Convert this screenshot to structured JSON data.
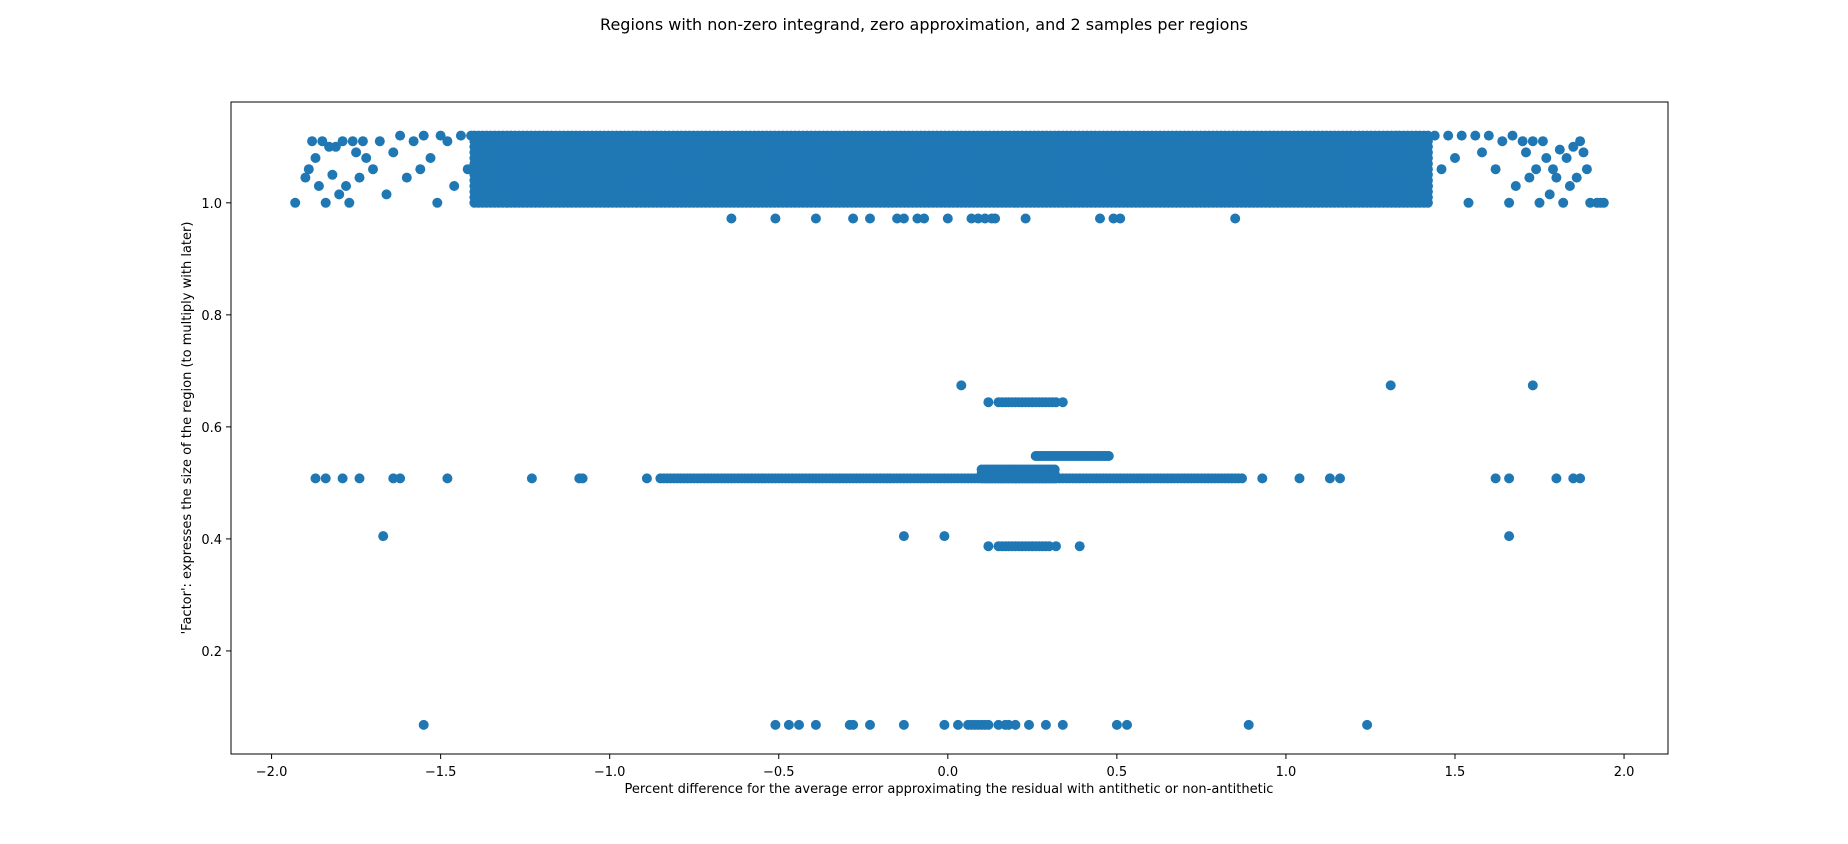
{
  "chart_data": {
    "type": "scatter",
    "title": "Regions with non-zero integrand, zero approximation, and 2 samples per regions",
    "xlabel": "Percent difference for the average error approximating the residual with antithetic or non-antithetic",
    "ylabel": "'Factor': expresses the size of the region (to multiply with later)",
    "xlim": [
      -2.12,
      2.13
    ],
    "ylim": [
      0.016,
      1.18
    ],
    "xticks": [
      -2.0,
      -1.5,
      -1.0,
      -0.5,
      0.0,
      0.5,
      1.0,
      1.5,
      2.0
    ],
    "xtick_labels": [
      "−2.0",
      "−1.5",
      "−1.0",
      "−0.5",
      "0.0",
      "0.5",
      "1.0",
      "1.5",
      "2.0"
    ],
    "yticks": [
      0.2,
      0.4,
      0.6,
      0.8,
      1.0
    ],
    "ytick_labels": [
      "0.2",
      "0.4",
      "0.6",
      "0.8",
      "1.0"
    ],
    "grid": false,
    "marker_color": "#1f77b4",
    "series": [
      {
        "points": [
          [
            -1.93,
            1.0
          ],
          [
            -1.9,
            1.045
          ],
          [
            -1.89,
            1.06
          ],
          [
            -1.88,
            1.11
          ],
          [
            -1.87,
            1.08
          ],
          [
            -1.86,
            1.03
          ],
          [
            -1.85,
            1.11
          ],
          [
            -1.84,
            1.0
          ],
          [
            -1.83,
            1.1
          ],
          [
            -1.82,
            1.05
          ],
          [
            -1.81,
            1.1
          ],
          [
            -1.8,
            1.015
          ],
          [
            -1.79,
            1.11
          ],
          [
            -1.78,
            1.03
          ],
          [
            -1.77,
            1.0
          ],
          [
            -1.76,
            1.11
          ],
          [
            -1.75,
            1.09
          ],
          [
            -1.74,
            1.045
          ],
          [
            -1.73,
            1.11
          ],
          [
            -1.72,
            1.08
          ],
          [
            -1.7,
            1.06
          ],
          [
            -1.68,
            1.11
          ],
          [
            -1.66,
            1.015
          ],
          [
            -1.64,
            1.09
          ],
          [
            -1.62,
            1.12
          ],
          [
            -1.6,
            1.045
          ],
          [
            -1.58,
            1.11
          ],
          [
            -1.56,
            1.06
          ],
          [
            -1.55,
            1.12
          ],
          [
            -1.53,
            1.08
          ],
          [
            -1.51,
            1.0
          ],
          [
            -1.5,
            1.12
          ],
          [
            -1.48,
            1.11
          ],
          [
            -1.46,
            1.03
          ],
          [
            -1.44,
            1.12
          ],
          [
            -1.42,
            1.06
          ],
          [
            -1.41,
            1.12
          ],
          [
            1.94,
            1.0
          ],
          [
            1.93,
            1.0
          ],
          [
            1.92,
            1.0
          ],
          [
            1.9,
            1.0
          ],
          [
            1.89,
            1.06
          ],
          [
            1.88,
            1.09
          ],
          [
            1.87,
            1.11
          ],
          [
            1.86,
            1.045
          ],
          [
            1.85,
            1.1
          ],
          [
            1.84,
            1.03
          ],
          [
            1.83,
            1.08
          ],
          [
            1.82,
            1.0
          ],
          [
            1.81,
            1.095
          ],
          [
            1.8,
            1.045
          ],
          [
            1.79,
            1.06
          ],
          [
            1.78,
            1.015
          ],
          [
            1.77,
            1.08
          ],
          [
            1.76,
            1.11
          ],
          [
            1.75,
            1.0
          ],
          [
            1.74,
            1.06
          ],
          [
            1.73,
            1.11
          ],
          [
            1.72,
            1.045
          ],
          [
            1.71,
            1.09
          ],
          [
            1.7,
            1.11
          ],
          [
            1.68,
            1.03
          ],
          [
            1.67,
            1.12
          ],
          [
            1.66,
            1.0
          ],
          [
            1.64,
            1.11
          ],
          [
            1.62,
            1.06
          ],
          [
            1.6,
            1.12
          ],
          [
            1.58,
            1.09
          ],
          [
            1.56,
            1.12
          ],
          [
            1.54,
            1.0
          ],
          [
            1.52,
            1.12
          ],
          [
            1.5,
            1.08
          ],
          [
            1.48,
            1.12
          ],
          [
            1.46,
            1.06
          ],
          [
            1.44,
            1.12
          ],
          [
            1.42,
            1.03
          ],
          [
            -0.64,
            0.972
          ],
          [
            -0.51,
            0.972
          ],
          [
            -0.39,
            0.972
          ],
          [
            -0.28,
            0.972
          ],
          [
            -0.23,
            0.972
          ],
          [
            -0.15,
            0.972
          ],
          [
            -0.13,
            0.972
          ],
          [
            -0.09,
            0.972
          ],
          [
            -0.07,
            0.972
          ],
          [
            0.0,
            0.972
          ],
          [
            0.07,
            0.972
          ],
          [
            0.09,
            0.972
          ],
          [
            0.11,
            0.972
          ],
          [
            0.13,
            0.972
          ],
          [
            0.14,
            0.972
          ],
          [
            0.23,
            0.972
          ],
          [
            0.45,
            0.972
          ],
          [
            0.49,
            0.972
          ],
          [
            0.51,
            0.972
          ],
          [
            0.85,
            0.972
          ],
          [
            0.04,
            0.674
          ],
          [
            1.31,
            0.674
          ],
          [
            1.73,
            0.674
          ],
          [
            0.12,
            0.644
          ],
          [
            0.34,
            0.644
          ],
          [
            -1.87,
            0.508
          ],
          [
            -1.84,
            0.508
          ],
          [
            -1.79,
            0.508
          ],
          [
            -1.74,
            0.508
          ],
          [
            -1.64,
            0.508
          ],
          [
            -1.62,
            0.508
          ],
          [
            -1.48,
            0.508
          ],
          [
            -1.23,
            0.508
          ],
          [
            -1.09,
            0.508
          ],
          [
            -1.08,
            0.508
          ],
          [
            -0.89,
            0.508
          ],
          [
            0.93,
            0.508
          ],
          [
            1.04,
            0.508
          ],
          [
            1.13,
            0.508
          ],
          [
            1.16,
            0.508
          ],
          [
            1.62,
            0.508
          ],
          [
            1.66,
            0.508
          ],
          [
            1.8,
            0.508
          ],
          [
            1.85,
            0.508
          ],
          [
            1.87,
            0.508
          ],
          [
            -1.67,
            0.405
          ],
          [
            -0.13,
            0.405
          ],
          [
            -0.01,
            0.405
          ],
          [
            1.66,
            0.405
          ],
          [
            0.12,
            0.387
          ],
          [
            0.32,
            0.387
          ],
          [
            0.39,
            0.387
          ],
          [
            -1.55,
            0.068
          ],
          [
            -0.51,
            0.068
          ],
          [
            -0.47,
            0.068
          ],
          [
            -0.44,
            0.068
          ],
          [
            -0.39,
            0.068
          ],
          [
            -0.29,
            0.068
          ],
          [
            -0.28,
            0.068
          ],
          [
            -0.23,
            0.068
          ],
          [
            -0.13,
            0.068
          ],
          [
            -0.01,
            0.068
          ],
          [
            0.03,
            0.068
          ],
          [
            0.06,
            0.068
          ],
          [
            0.07,
            0.068
          ],
          [
            0.08,
            0.068
          ],
          [
            0.09,
            0.068
          ],
          [
            0.1,
            0.068
          ],
          [
            0.11,
            0.068
          ],
          [
            0.12,
            0.068
          ],
          [
            0.15,
            0.068
          ],
          [
            0.17,
            0.068
          ],
          [
            0.18,
            0.068
          ],
          [
            0.2,
            0.068
          ],
          [
            0.24,
            0.068
          ],
          [
            0.29,
            0.068
          ],
          [
            0.34,
            0.068
          ],
          [
            0.5,
            0.068
          ],
          [
            0.53,
            0.068
          ],
          [
            0.89,
            0.068
          ],
          [
            1.24,
            0.068
          ]
        ],
        "dense_bands": [
          {
            "x": [
              -1.4,
              1.42
            ],
            "y": [
              1.0,
              1.125
            ],
            "step_x": 0.012,
            "step_y": 0.01
          },
          {
            "x": [
              -0.85,
              0.87
            ],
            "y": [
              0.508,
              0.508
            ],
            "step_x": 0.01,
            "step_y": 0.01
          },
          {
            "x": [
              0.1,
              0.32
            ],
            "y": [
              0.508,
              0.525
            ],
            "step_x": 0.008,
            "step_y": 0.008
          },
          {
            "x": [
              0.26,
              0.48
            ],
            "y": [
              0.548,
              0.548
            ],
            "step_x": 0.006,
            "step_y": 0.01
          },
          {
            "x": [
              0.15,
              0.32
            ],
            "y": [
              0.644,
              0.644
            ],
            "step_x": 0.01,
            "step_y": 0.01
          },
          {
            "x": [
              0.15,
              0.3
            ],
            "y": [
              0.387,
              0.387
            ],
            "step_x": 0.01,
            "step_y": 0.01
          }
        ]
      }
    ]
  }
}
